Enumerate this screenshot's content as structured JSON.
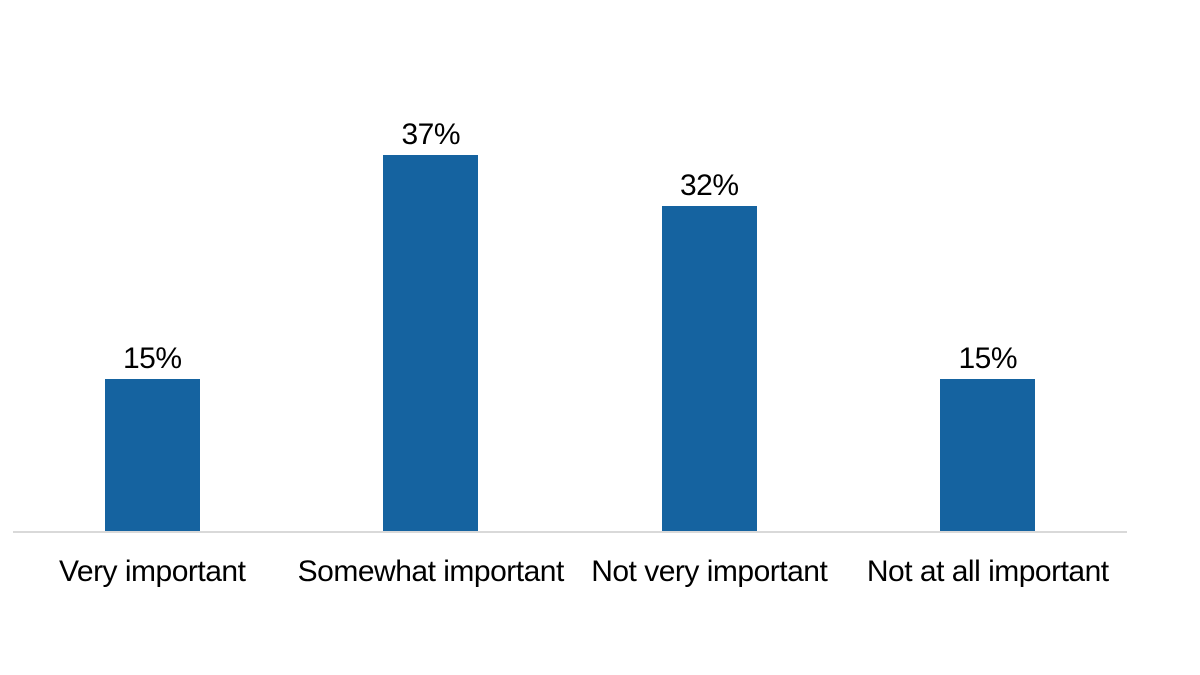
{
  "chart_data": {
    "type": "bar",
    "title": "",
    "xlabel": "",
    "ylabel": "",
    "categories": [
      "Very important",
      "Somewhat important",
      "Not very important",
      "Not at all important"
    ],
    "values": [
      15,
      37,
      32,
      15
    ],
    "data_labels": [
      "15%",
      "37%",
      "32%",
      "15%"
    ],
    "ylim": [
      0,
      40
    ],
    "grid": false,
    "legend": "none",
    "axis_ticks_visible": false,
    "colors": {
      "bar": "#1563A0",
      "axis_line": "#D9D9D9",
      "text": "#000000",
      "background": "#FFFFFF"
    }
  }
}
